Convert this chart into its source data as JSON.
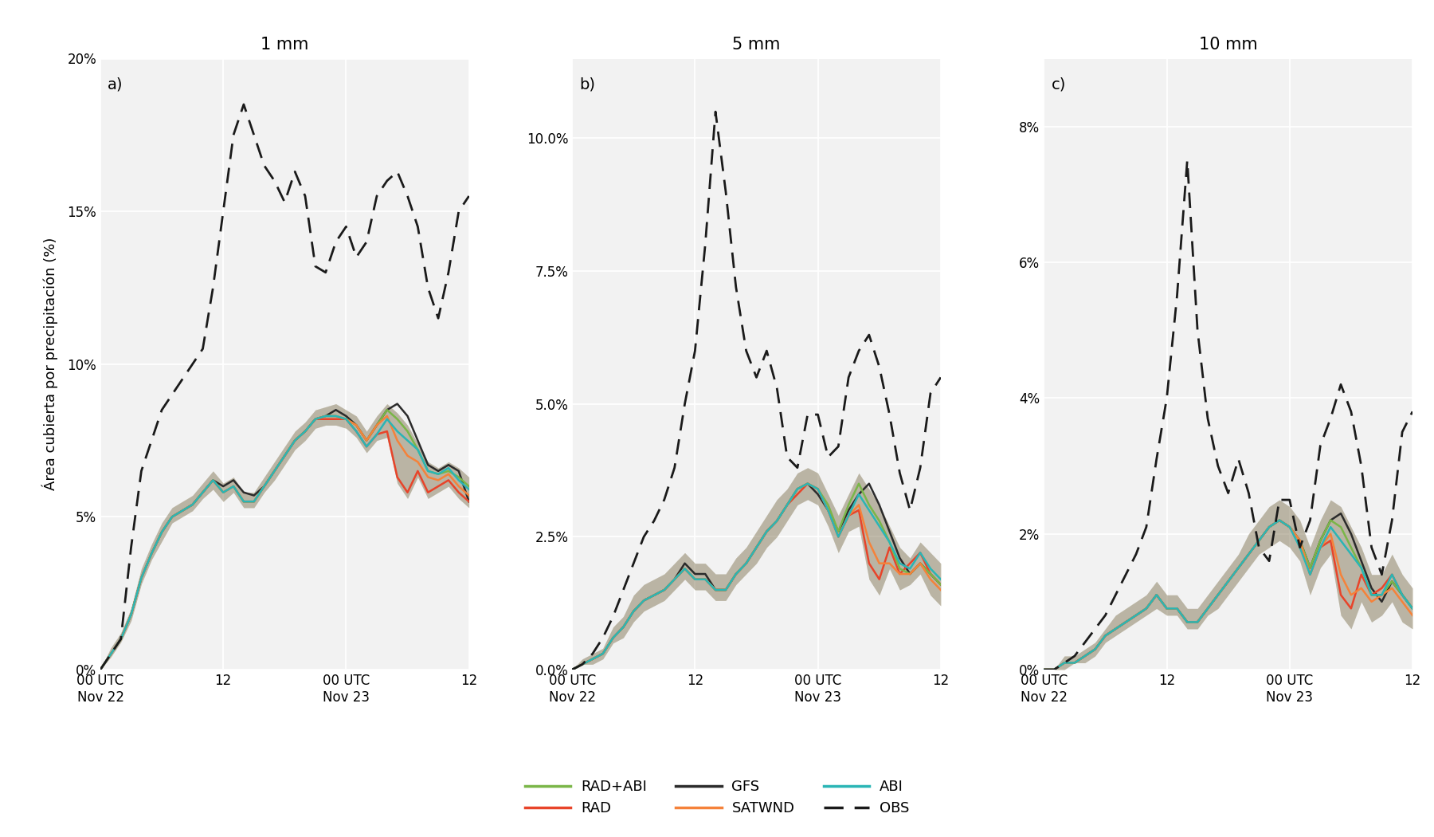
{
  "title_a": "1 mm",
  "title_b": "5 mm",
  "title_c": "10 mm",
  "label_a": "a)",
  "label_b": "b)",
  "label_c": "c)",
  "ylabel": "Área cubierta por precipitación (%)",
  "background_color": "#f2f2f2",
  "colors": {
    "RAD_ABI": "#7ab648",
    "RAD": "#e8442a",
    "GFS": "#2b2b2b",
    "SATWND": "#f5823a",
    "ABI": "#2ab5b5",
    "OBS": "#1a1a1a"
  },
  "fill_alpha": 0.12,
  "n_steps": 37,
  "xtick_positions": [
    0,
    12,
    24,
    36
  ],
  "xtick_labels": [
    "00 UTC\nNov 22",
    "12",
    "00 UTC\nNov 23",
    "12"
  ],
  "panel_a": {
    "ylim": [
      0,
      0.2
    ],
    "yticks": [
      0.0,
      0.05,
      0.1,
      0.15,
      0.2
    ],
    "ytick_labels": [
      "0%",
      "5%",
      "10%",
      "15%",
      "20%"
    ],
    "obs": [
      0.0,
      0.005,
      0.01,
      0.04,
      0.065,
      0.075,
      0.085,
      0.09,
      0.095,
      0.1,
      0.105,
      0.125,
      0.15,
      0.175,
      0.185,
      0.175,
      0.165,
      0.16,
      0.153,
      0.163,
      0.155,
      0.132,
      0.13,
      0.14,
      0.145,
      0.135,
      0.14,
      0.155,
      0.16,
      0.163,
      0.155,
      0.145,
      0.125,
      0.115,
      0.13,
      0.15,
      0.155
    ],
    "GFS": [
      0.0,
      0.005,
      0.01,
      0.018,
      0.03,
      0.038,
      0.045,
      0.05,
      0.052,
      0.054,
      0.058,
      0.062,
      0.06,
      0.062,
      0.058,
      0.057,
      0.06,
      0.065,
      0.07,
      0.075,
      0.078,
      0.082,
      0.083,
      0.085,
      0.083,
      0.08,
      0.075,
      0.08,
      0.085,
      0.087,
      0.083,
      0.075,
      0.067,
      0.065,
      0.067,
      0.065,
      0.055
    ],
    "RAD": [
      0.0,
      0.005,
      0.01,
      0.018,
      0.03,
      0.038,
      0.045,
      0.05,
      0.052,
      0.054,
      0.058,
      0.062,
      0.058,
      0.06,
      0.055,
      0.055,
      0.06,
      0.065,
      0.07,
      0.075,
      0.078,
      0.082,
      0.082,
      0.082,
      0.082,
      0.078,
      0.073,
      0.077,
      0.078,
      0.063,
      0.058,
      0.065,
      0.058,
      0.06,
      0.062,
      0.058,
      0.055
    ],
    "RAD_ABI": [
      0.0,
      0.005,
      0.01,
      0.018,
      0.03,
      0.038,
      0.045,
      0.05,
      0.052,
      0.054,
      0.058,
      0.062,
      0.058,
      0.06,
      0.055,
      0.055,
      0.06,
      0.065,
      0.07,
      0.075,
      0.078,
      0.082,
      0.083,
      0.083,
      0.082,
      0.08,
      0.075,
      0.08,
      0.085,
      0.082,
      0.078,
      0.072,
      0.065,
      0.064,
      0.065,
      0.063,
      0.06
    ],
    "SATWND": [
      0.0,
      0.005,
      0.01,
      0.018,
      0.03,
      0.038,
      0.045,
      0.05,
      0.052,
      0.054,
      0.058,
      0.062,
      0.058,
      0.06,
      0.055,
      0.055,
      0.06,
      0.065,
      0.07,
      0.075,
      0.078,
      0.082,
      0.083,
      0.083,
      0.082,
      0.08,
      0.075,
      0.08,
      0.083,
      0.075,
      0.07,
      0.068,
      0.063,
      0.062,
      0.064,
      0.06,
      0.057
    ],
    "ABI": [
      0.0,
      0.005,
      0.01,
      0.018,
      0.03,
      0.038,
      0.045,
      0.05,
      0.052,
      0.054,
      0.058,
      0.062,
      0.058,
      0.06,
      0.055,
      0.055,
      0.06,
      0.065,
      0.07,
      0.075,
      0.078,
      0.082,
      0.083,
      0.083,
      0.082,
      0.078,
      0.073,
      0.077,
      0.082,
      0.078,
      0.075,
      0.072,
      0.065,
      0.064,
      0.066,
      0.062,
      0.059
    ],
    "fill_min": [
      0.0,
      0.004,
      0.009,
      0.016,
      0.028,
      0.036,
      0.042,
      0.048,
      0.05,
      0.052,
      0.056,
      0.059,
      0.055,
      0.058,
      0.053,
      0.053,
      0.058,
      0.062,
      0.067,
      0.072,
      0.075,
      0.079,
      0.08,
      0.08,
      0.079,
      0.076,
      0.071,
      0.075,
      0.076,
      0.061,
      0.056,
      0.063,
      0.056,
      0.058,
      0.06,
      0.056,
      0.053
    ],
    "fill_max": [
      0.0,
      0.007,
      0.012,
      0.02,
      0.033,
      0.041,
      0.048,
      0.053,
      0.055,
      0.057,
      0.061,
      0.065,
      0.061,
      0.063,
      0.058,
      0.058,
      0.063,
      0.068,
      0.073,
      0.078,
      0.081,
      0.085,
      0.086,
      0.087,
      0.085,
      0.083,
      0.078,
      0.083,
      0.087,
      0.084,
      0.08,
      0.074,
      0.068,
      0.066,
      0.068,
      0.066,
      0.063
    ]
  },
  "panel_b": {
    "ylim": [
      0,
      0.115
    ],
    "yticks": [
      0.0,
      0.025,
      0.05,
      0.075,
      0.1
    ],
    "ytick_labels": [
      "0.0%",
      "2.5%",
      "5.0%",
      "7.5%",
      "10.0%"
    ],
    "obs": [
      0.0,
      0.001,
      0.003,
      0.006,
      0.01,
      0.015,
      0.02,
      0.025,
      0.028,
      0.032,
      0.038,
      0.05,
      0.06,
      0.08,
      0.105,
      0.09,
      0.072,
      0.06,
      0.055,
      0.06,
      0.053,
      0.04,
      0.038,
      0.048,
      0.048,
      0.04,
      0.042,
      0.055,
      0.06,
      0.063,
      0.057,
      0.048,
      0.037,
      0.03,
      0.038,
      0.052,
      0.055
    ],
    "GFS": [
      0.0,
      0.001,
      0.002,
      0.003,
      0.006,
      0.008,
      0.011,
      0.013,
      0.014,
      0.015,
      0.017,
      0.02,
      0.018,
      0.018,
      0.015,
      0.015,
      0.018,
      0.02,
      0.023,
      0.026,
      0.028,
      0.031,
      0.034,
      0.035,
      0.033,
      0.03,
      0.026,
      0.03,
      0.033,
      0.035,
      0.031,
      0.026,
      0.021,
      0.018,
      0.02,
      0.018,
      0.016
    ],
    "RAD": [
      0.0,
      0.001,
      0.002,
      0.003,
      0.006,
      0.008,
      0.011,
      0.013,
      0.014,
      0.015,
      0.017,
      0.019,
      0.017,
      0.017,
      0.015,
      0.015,
      0.018,
      0.02,
      0.023,
      0.026,
      0.028,
      0.031,
      0.033,
      0.035,
      0.034,
      0.03,
      0.025,
      0.029,
      0.03,
      0.02,
      0.017,
      0.023,
      0.018,
      0.02,
      0.022,
      0.018,
      0.016
    ],
    "RAD_ABI": [
      0.0,
      0.001,
      0.002,
      0.003,
      0.006,
      0.008,
      0.011,
      0.013,
      0.014,
      0.015,
      0.017,
      0.019,
      0.017,
      0.017,
      0.015,
      0.015,
      0.018,
      0.02,
      0.023,
      0.026,
      0.028,
      0.031,
      0.034,
      0.035,
      0.034,
      0.031,
      0.026,
      0.031,
      0.035,
      0.031,
      0.028,
      0.024,
      0.019,
      0.018,
      0.02,
      0.018,
      0.016
    ],
    "SATWND": [
      0.0,
      0.001,
      0.002,
      0.003,
      0.006,
      0.008,
      0.011,
      0.013,
      0.014,
      0.015,
      0.017,
      0.019,
      0.017,
      0.017,
      0.015,
      0.015,
      0.018,
      0.02,
      0.023,
      0.026,
      0.028,
      0.031,
      0.034,
      0.035,
      0.034,
      0.03,
      0.025,
      0.029,
      0.031,
      0.024,
      0.02,
      0.02,
      0.018,
      0.018,
      0.02,
      0.017,
      0.015
    ],
    "ABI": [
      0.0,
      0.001,
      0.002,
      0.003,
      0.006,
      0.008,
      0.011,
      0.013,
      0.014,
      0.015,
      0.017,
      0.019,
      0.017,
      0.017,
      0.015,
      0.015,
      0.018,
      0.02,
      0.023,
      0.026,
      0.028,
      0.031,
      0.034,
      0.035,
      0.034,
      0.03,
      0.025,
      0.029,
      0.033,
      0.03,
      0.027,
      0.024,
      0.02,
      0.019,
      0.022,
      0.019,
      0.017
    ],
    "fill_min": [
      0.0,
      0.001,
      0.001,
      0.002,
      0.005,
      0.006,
      0.009,
      0.011,
      0.012,
      0.013,
      0.015,
      0.017,
      0.015,
      0.015,
      0.013,
      0.013,
      0.016,
      0.018,
      0.02,
      0.023,
      0.025,
      0.028,
      0.031,
      0.032,
      0.031,
      0.027,
      0.022,
      0.026,
      0.027,
      0.017,
      0.014,
      0.019,
      0.015,
      0.016,
      0.018,
      0.014,
      0.012
    ],
    "fill_max": [
      0.0,
      0.002,
      0.003,
      0.004,
      0.008,
      0.01,
      0.014,
      0.016,
      0.017,
      0.018,
      0.02,
      0.022,
      0.02,
      0.02,
      0.018,
      0.018,
      0.021,
      0.023,
      0.026,
      0.029,
      0.032,
      0.034,
      0.037,
      0.038,
      0.037,
      0.033,
      0.029,
      0.033,
      0.037,
      0.034,
      0.031,
      0.027,
      0.023,
      0.021,
      0.024,
      0.022,
      0.02
    ]
  },
  "panel_c": {
    "ylim": [
      0,
      0.09
    ],
    "yticks": [
      0.0,
      0.02,
      0.04,
      0.06,
      0.08
    ],
    "ytick_labels": [
      "0%",
      "2%",
      "4%",
      "6%",
      "8%"
    ],
    "obs": [
      0.0,
      0.0,
      0.001,
      0.002,
      0.004,
      0.006,
      0.008,
      0.011,
      0.014,
      0.017,
      0.021,
      0.031,
      0.04,
      0.055,
      0.075,
      0.05,
      0.037,
      0.03,
      0.026,
      0.031,
      0.026,
      0.018,
      0.016,
      0.025,
      0.025,
      0.018,
      0.022,
      0.033,
      0.037,
      0.042,
      0.038,
      0.03,
      0.018,
      0.014,
      0.022,
      0.035,
      0.038
    ],
    "GFS": [
      0.0,
      0.0,
      0.001,
      0.001,
      0.002,
      0.003,
      0.005,
      0.006,
      0.007,
      0.008,
      0.009,
      0.011,
      0.009,
      0.009,
      0.007,
      0.007,
      0.009,
      0.011,
      0.013,
      0.015,
      0.017,
      0.019,
      0.021,
      0.022,
      0.021,
      0.019,
      0.015,
      0.019,
      0.022,
      0.023,
      0.02,
      0.016,
      0.012,
      0.01,
      0.013,
      0.011,
      0.009
    ],
    "RAD": [
      0.0,
      0.0,
      0.001,
      0.001,
      0.002,
      0.003,
      0.005,
      0.006,
      0.007,
      0.008,
      0.009,
      0.011,
      0.009,
      0.009,
      0.007,
      0.007,
      0.009,
      0.011,
      0.013,
      0.015,
      0.017,
      0.019,
      0.021,
      0.022,
      0.021,
      0.019,
      0.014,
      0.018,
      0.019,
      0.011,
      0.009,
      0.014,
      0.011,
      0.012,
      0.014,
      0.011,
      0.009
    ],
    "RAD_ABI": [
      0.0,
      0.0,
      0.001,
      0.001,
      0.002,
      0.003,
      0.005,
      0.006,
      0.007,
      0.008,
      0.009,
      0.011,
      0.009,
      0.009,
      0.007,
      0.007,
      0.009,
      0.011,
      0.013,
      0.015,
      0.017,
      0.019,
      0.021,
      0.022,
      0.021,
      0.019,
      0.015,
      0.019,
      0.022,
      0.021,
      0.018,
      0.015,
      0.011,
      0.011,
      0.013,
      0.011,
      0.009
    ],
    "SATWND": [
      0.0,
      0.0,
      0.001,
      0.001,
      0.002,
      0.003,
      0.005,
      0.006,
      0.007,
      0.008,
      0.009,
      0.011,
      0.009,
      0.009,
      0.007,
      0.007,
      0.009,
      0.011,
      0.013,
      0.015,
      0.017,
      0.019,
      0.021,
      0.022,
      0.021,
      0.019,
      0.014,
      0.018,
      0.02,
      0.014,
      0.011,
      0.012,
      0.01,
      0.011,
      0.012,
      0.01,
      0.008
    ],
    "ABI": [
      0.0,
      0.0,
      0.001,
      0.001,
      0.002,
      0.003,
      0.005,
      0.006,
      0.007,
      0.008,
      0.009,
      0.011,
      0.009,
      0.009,
      0.007,
      0.007,
      0.009,
      0.011,
      0.013,
      0.015,
      0.017,
      0.019,
      0.021,
      0.022,
      0.021,
      0.018,
      0.014,
      0.018,
      0.021,
      0.019,
      0.017,
      0.015,
      0.011,
      0.011,
      0.014,
      0.011,
      0.009
    ],
    "fill_min": [
      0.0,
      0.0,
      0.0,
      0.001,
      0.001,
      0.002,
      0.004,
      0.005,
      0.006,
      0.007,
      0.008,
      0.009,
      0.008,
      0.008,
      0.006,
      0.006,
      0.008,
      0.009,
      0.011,
      0.013,
      0.015,
      0.017,
      0.018,
      0.019,
      0.018,
      0.016,
      0.011,
      0.015,
      0.017,
      0.008,
      0.006,
      0.01,
      0.007,
      0.008,
      0.01,
      0.007,
      0.006
    ],
    "fill_max": [
      0.0,
      0.0,
      0.002,
      0.002,
      0.003,
      0.004,
      0.006,
      0.008,
      0.009,
      0.01,
      0.011,
      0.013,
      0.011,
      0.011,
      0.009,
      0.009,
      0.011,
      0.013,
      0.015,
      0.017,
      0.02,
      0.022,
      0.024,
      0.025,
      0.024,
      0.022,
      0.018,
      0.022,
      0.025,
      0.024,
      0.021,
      0.018,
      0.014,
      0.014,
      0.017,
      0.014,
      0.012
    ]
  }
}
